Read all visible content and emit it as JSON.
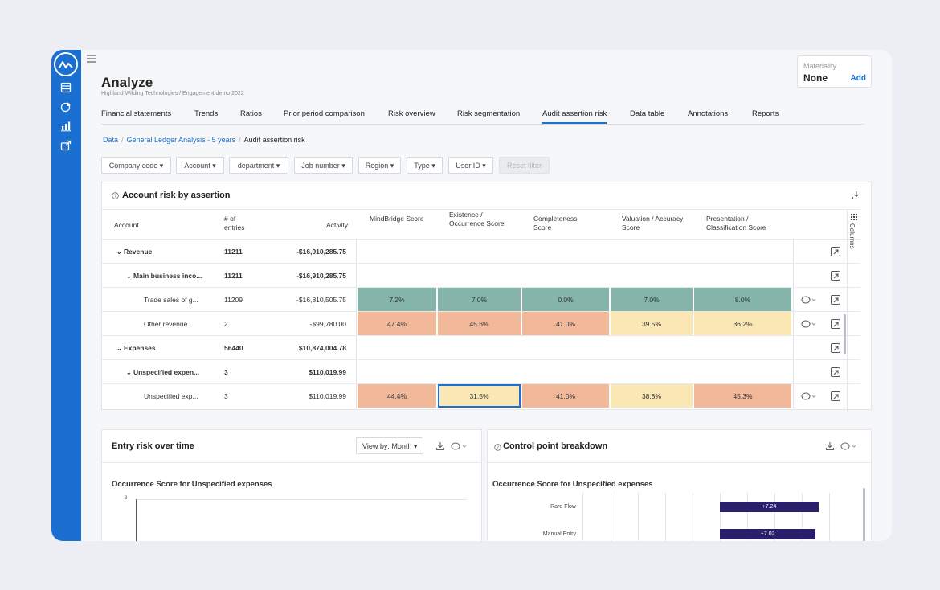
{
  "header": {
    "title": "Analyze",
    "subtitle": "Highland Wilding Technologies / Engagement demo 2022"
  },
  "materiality": {
    "label": "Materiality",
    "value": "None",
    "add_label": "Add"
  },
  "tabs": [
    {
      "label": "Financial statements"
    },
    {
      "label": "Trends"
    },
    {
      "label": "Ratios"
    },
    {
      "label": "Prior period comparison"
    },
    {
      "label": "Risk overview"
    },
    {
      "label": "Risk segmentation"
    },
    {
      "label": "Audit assertion risk",
      "active": true
    },
    {
      "label": "Data table"
    },
    {
      "label": "Annotations"
    },
    {
      "label": "Reports"
    }
  ],
  "breadcrumb": {
    "items": [
      "Data",
      "General Ledger Analysis - 5 years",
      "Audit assertion risk"
    ]
  },
  "filters": [
    {
      "label": "Company code ▾"
    },
    {
      "label": "Account ▾"
    },
    {
      "label": "department ▾"
    },
    {
      "label": "Job number ▾"
    },
    {
      "label": "Region ▾"
    },
    {
      "label": "Type ▾"
    },
    {
      "label": "User ID ▾"
    },
    {
      "label": "Reset filter",
      "disabled": true
    }
  ],
  "risk_table": {
    "title": "Account risk by assertion",
    "columns_label": "Columns",
    "headers": {
      "account": "Account",
      "entries": "# of entries",
      "activity": "Activity",
      "mindbridge": "MindBridge Score",
      "existence": "Existence / Occurrence Score",
      "completeness": "Completeness Score",
      "valuation": "Valuation / Accuracy Score",
      "presentation": "Presentation / Classification Score"
    },
    "rows": [
      {
        "account": "Revenue",
        "entries": "11211",
        "activity": "-$16,910,285.75",
        "level": 0,
        "bold": true,
        "scores": []
      },
      {
        "account": "Main business inco...",
        "entries": "11211",
        "activity": "-$16,910,285.75",
        "level": 1,
        "bold": true,
        "scores": []
      },
      {
        "account": "Trade sales of g...",
        "entries": "11209",
        "activity": "-$16,810,505.75",
        "level": 2,
        "bold": false,
        "scores": [
          "7.2%",
          "7.0%",
          "0.0%",
          "7.0%",
          "8.0%"
        ],
        "risk": [
          "low",
          "low",
          "low",
          "low",
          "low"
        ]
      },
      {
        "account": "Other revenue",
        "entries": "2",
        "activity": "-$99,780.00",
        "level": 2,
        "bold": false,
        "scores": [
          "47.4%",
          "45.6%",
          "41.0%",
          "39.5%",
          "36.2%"
        ],
        "risk": [
          "high",
          "high",
          "high",
          "medium",
          "medium"
        ]
      },
      {
        "account": "Expenses",
        "entries": "56440",
        "activity": "$10,874,004.78",
        "level": 0,
        "bold": true,
        "scores": []
      },
      {
        "account": "Unspecified expen...",
        "entries": "3",
        "activity": "$110,019.99",
        "level": 1,
        "bold": true,
        "scores": []
      },
      {
        "account": "Unspecified exp...",
        "entries": "3",
        "activity": "$110,019.99",
        "level": 2,
        "bold": false,
        "scores": [
          "44.4%",
          "31.5%",
          "41.0%",
          "38.8%",
          "45.3%"
        ],
        "risk": [
          "high",
          "medium",
          "high",
          "medium",
          "high"
        ],
        "selected": 1
      }
    ],
    "colors": {
      "low": "#85b4ab",
      "medium": "#fbe7b4",
      "high": "#f2b89a"
    }
  },
  "entry_risk": {
    "title": "Entry risk over time",
    "view_by": "View by: Month ▾",
    "chart_title": "Occurrence Score for Unspecified expenses",
    "y_tick_top": "3"
  },
  "control_points": {
    "title": "Control point breakdown",
    "chart_title": "Occurrence Score for Unspecified expenses",
    "chart_data": {
      "type": "bar",
      "categories": [
        "Rare Flow",
        "Manual Entry"
      ],
      "values": [
        7.24,
        7.02
      ],
      "value_labels": [
        "+7.24",
        "+7.02"
      ],
      "title": "Occurrence Score for Unspecified expenses"
    }
  }
}
